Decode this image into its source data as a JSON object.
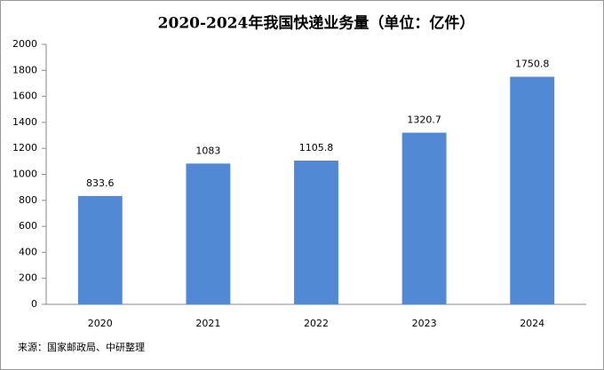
{
  "chart_data": {
    "type": "bar",
    "title": "2020-2024年我国快递业务量（单位：亿件）",
    "categories": [
      "2020",
      "2021",
      "2022",
      "2023",
      "2024"
    ],
    "values": [
      833.6,
      1083,
      1105.8,
      1320.7,
      1750.8
    ],
    "color": "#5289d4",
    "ylim": [
      0,
      2000
    ],
    "yticks": [
      0,
      200,
      400,
      600,
      800,
      1000,
      1200,
      1400,
      1600,
      1800,
      2000
    ],
    "grid": false,
    "source": "来源：国家邮政局、中研整理"
  }
}
